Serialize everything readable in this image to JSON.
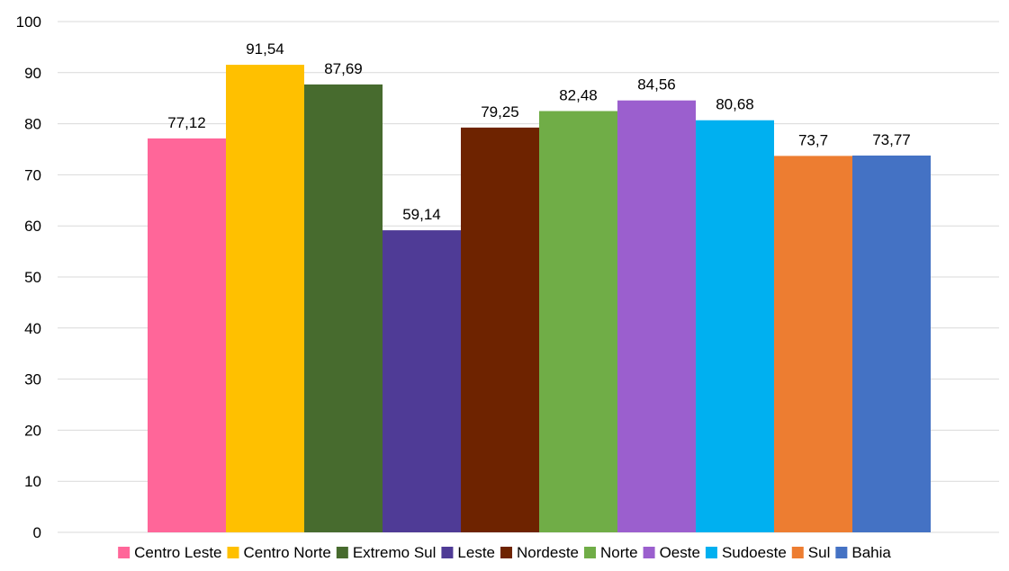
{
  "chart_data": {
    "type": "bar",
    "title": "",
    "xlabel": "",
    "ylabel": "",
    "ylim": [
      0,
      100
    ],
    "yticks": [
      0,
      10,
      20,
      30,
      40,
      50,
      60,
      70,
      80,
      90,
      100
    ],
    "grid": true,
    "legend_position": "bottom",
    "series": [
      {
        "name": "Centro Leste",
        "value": 77.12,
        "label": "77,12",
        "color": "#ff6699"
      },
      {
        "name": "Centro Norte",
        "value": 91.54,
        "label": "91,54",
        "color": "#ffc000"
      },
      {
        "name": "Extremo Sul",
        "value": 87.69,
        "label": "87,69",
        "color": "#476b2e"
      },
      {
        "name": "Leste",
        "value": 59.14,
        "label": "59,14",
        "color": "#4f3b96"
      },
      {
        "name": "Nordeste",
        "value": 79.25,
        "label": "79,25",
        "color": "#6e2300"
      },
      {
        "name": "Norte",
        "value": 82.48,
        "label": "82,48",
        "color": "#70ad47"
      },
      {
        "name": "Oeste",
        "value": 84.56,
        "label": "84,56",
        "color": "#9b5fce"
      },
      {
        "name": "Sudoeste",
        "value": 80.68,
        "label": "80,68",
        "color": "#00b0f0"
      },
      {
        "name": "Sul",
        "value": 73.7,
        "label": "73,7",
        "color": "#ed7d31"
      },
      {
        "name": "Bahia",
        "value": 73.77,
        "label": "73,77",
        "color": "#4472c4"
      }
    ]
  }
}
